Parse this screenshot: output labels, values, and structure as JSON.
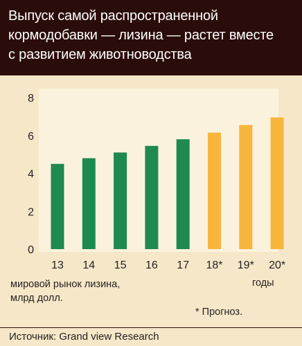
{
  "header": {
    "title_lines": [
      "Выпуск самой распространенной",
      "кормодобавки — лизина — растет вместе",
      "с развитием животноводства"
    ],
    "background_color": "#2a0d0a"
  },
  "chart_data": {
    "type": "bar",
    "categories": [
      "13",
      "14",
      "15",
      "16",
      "17",
      "18*",
      "19*",
      "20*"
    ],
    "values": [
      4.5,
      4.8,
      5.1,
      5.45,
      5.8,
      6.15,
      6.55,
      6.95
    ],
    "forecast": [
      false,
      false,
      false,
      false,
      false,
      true,
      true,
      true
    ],
    "ylim": [
      0,
      8
    ],
    "yticks": [
      "0",
      "2",
      "4",
      "6",
      "8"
    ],
    "xlabel_lines": [
      "мировой рынок лизина,",
      "млрд долл."
    ],
    "unit_label": "годы",
    "colors": {
      "actual": "#1e8a4f",
      "forecast": "#f7b53b"
    }
  },
  "footnote": "* Прогноз.",
  "source": "Источник: Grand view Research"
}
